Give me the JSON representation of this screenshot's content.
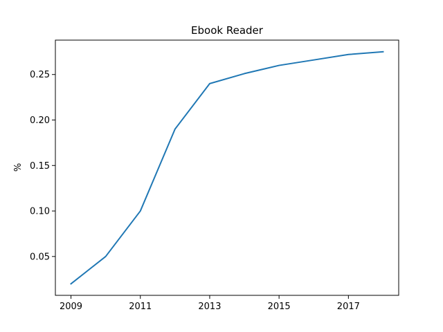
{
  "chart_data": {
    "type": "line",
    "title": "Ebook Reader",
    "xlabel": "",
    "ylabel": "%",
    "x": [
      2009,
      2010,
      2011,
      2012,
      2013,
      2014,
      2015,
      2016,
      2017,
      2018
    ],
    "series": [
      {
        "color": "#1f77b4",
        "values": [
          0.02,
          0.05,
          0.1,
          0.19,
          0.24,
          0.251,
          0.26,
          0.266,
          0.272,
          0.275
        ]
      }
    ],
    "xticks": [
      "2009",
      "2011",
      "2013",
      "2015",
      "2017"
    ],
    "yticks": [
      "0.05",
      "0.10",
      "0.15",
      "0.20",
      "0.25"
    ],
    "xlim": [
      2008.55,
      2018.45
    ],
    "ylim": [
      0.0073,
      0.2878
    ],
    "grid": false,
    "legend": "none"
  }
}
